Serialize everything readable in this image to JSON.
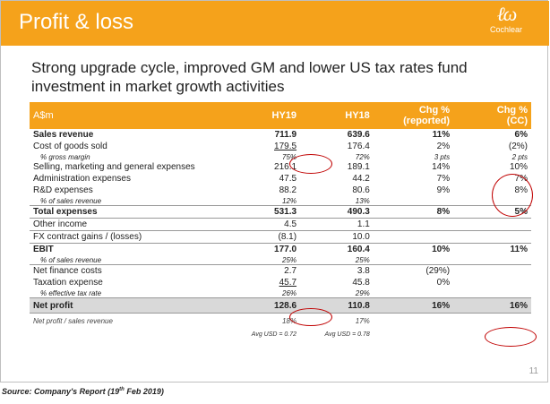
{
  "slide": {
    "title": "Profit & loss",
    "brand": "Cochlear",
    "brand_mark": "ℓω",
    "subtitle": "Strong upgrade cycle, improved GM and lower US tax rates fund investment in market growth activities",
    "page_number": "11",
    "accent_color": "#f5a21b",
    "highlight_color": "#c00000"
  },
  "table": {
    "headers": [
      "A$m",
      "HY19",
      "HY18",
      "Chg %\n(reported)",
      "Chg %\n(CC)"
    ],
    "rows": [
      {
        "style": "bold",
        "cells": [
          "Sales revenue",
          "711.9",
          "639.6",
          "11%",
          "6%"
        ]
      },
      {
        "style": "normal",
        "cells": [
          "Cost of goods sold",
          "179.5",
          "176.4",
          "2%",
          "(2%)"
        ]
      },
      {
        "style": "sub",
        "cells": [
          "% gross margin",
          "75%",
          "72%",
          "3 pts",
          "2 pts"
        ]
      },
      {
        "style": "normal",
        "cells": [
          "Selling, marketing and general expenses",
          "216.1",
          "189.1",
          "14%",
          "10%"
        ]
      },
      {
        "style": "normal",
        "cells": [
          "Administration expenses",
          "47.5",
          "44.2",
          "7%",
          "7%"
        ]
      },
      {
        "style": "normal",
        "cells": [
          "R&D expenses",
          "88.2",
          "80.6",
          "9%",
          "8%"
        ]
      },
      {
        "style": "sub",
        "cells": [
          "% of sales revenue",
          "12%",
          "13%",
          "",
          ""
        ]
      },
      {
        "style": "bold-line",
        "cells": [
          "Total expenses",
          "531.3",
          "490.3",
          "8%",
          "5%"
        ]
      },
      {
        "style": "normal-line",
        "cells": [
          "Other income",
          "4.5",
          "1.1",
          "",
          ""
        ]
      },
      {
        "style": "normal-line",
        "cells": [
          "FX contract gains / (losses)",
          "(8.1)",
          "10.0",
          "",
          ""
        ]
      },
      {
        "style": "bold-line",
        "cells": [
          "EBIT",
          "177.0",
          "160.4",
          "10%",
          "11%"
        ]
      },
      {
        "style": "sub",
        "cells": [
          "% of sales revenue",
          "25%",
          "25%",
          "",
          ""
        ]
      },
      {
        "style": "normal-line",
        "cells": [
          "Net finance costs",
          "2.7",
          "3.8",
          "(29%)",
          ""
        ]
      },
      {
        "style": "normal",
        "cells": [
          "Taxation expense",
          "45.7",
          "45.8",
          "0%",
          ""
        ]
      },
      {
        "style": "sub",
        "cells": [
          "% effective tax rate",
          "26%",
          "29%",
          "",
          ""
        ]
      },
      {
        "style": "netprofit",
        "cells": [
          "Net profit",
          "128.6",
          "110.8",
          "16%",
          "16%"
        ]
      },
      {
        "style": "last",
        "cells": [
          "Net profit / sales revenue",
          "18%",
          "17%",
          "",
          ""
        ]
      }
    ],
    "fx_note": [
      "Avg USD = 0.72",
      "Avg USD = 0.78"
    ]
  },
  "source": {
    "prefix": "Source: Company's Report (19",
    "superscript": "th",
    "suffix": " Feb 2019)"
  }
}
